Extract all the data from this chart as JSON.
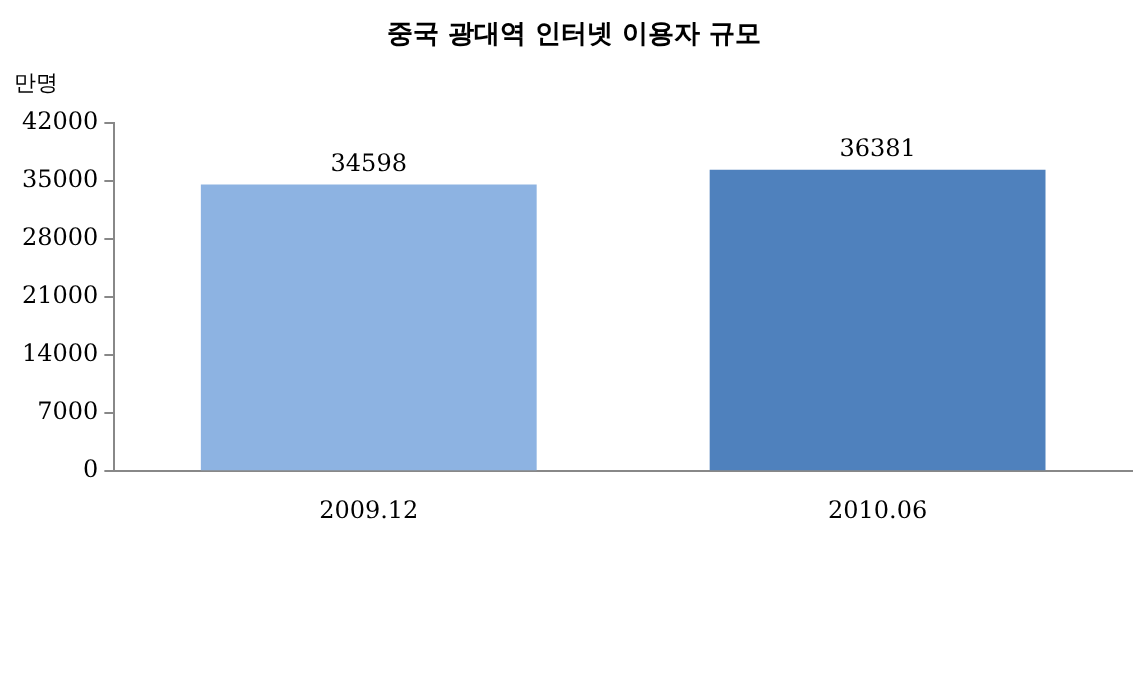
{
  "chart_data": {
    "type": "bar",
    "title": "중국 광대역 인터넷 이용자 규모",
    "ylabel": "만명",
    "categories": [
      "2009.12",
      "2010.06"
    ],
    "values": [
      34598,
      36381
    ],
    "colors": [
      "#8db3e2",
      "#4f81bd"
    ],
    "ylim": [
      0,
      42000
    ],
    "yticks": [
      0,
      7000,
      14000,
      21000,
      28000,
      35000,
      42000
    ],
    "grid": false,
    "legend": false,
    "data_labels": true
  }
}
